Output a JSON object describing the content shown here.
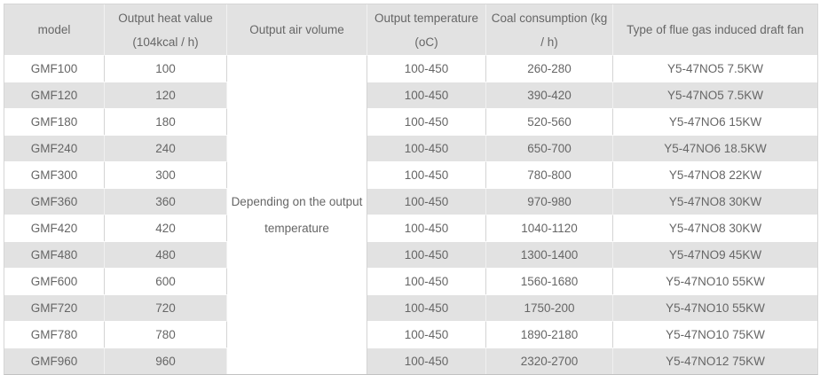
{
  "table": {
    "columns": [
      {
        "key": "model",
        "label": "model"
      },
      {
        "key": "heat",
        "label": "Output heat value\n(104kcal / h)"
      },
      {
        "key": "air",
        "label": "Output air volume"
      },
      {
        "key": "temp",
        "label": "Output temperature\n(oC)"
      },
      {
        "key": "coal",
        "label": "Coal consumption (kg\n/ h)"
      },
      {
        "key": "fan",
        "label": "Type of flue gas induced draft fan"
      }
    ],
    "air_volume_note": "Depending on the output\ntemperature",
    "rows": [
      {
        "model": "GMF100",
        "heat": "100",
        "temp": "100-450",
        "coal": "260-280",
        "fan": "Y5-47NO5 7.5KW"
      },
      {
        "model": "GMF120",
        "heat": "120",
        "temp": "100-450",
        "coal": "390-420",
        "fan": "Y5-47NO5 7.5KW"
      },
      {
        "model": "GMF180",
        "heat": "180",
        "temp": "100-450",
        "coal": "520-560",
        "fan": "Y5-47NO6 15KW"
      },
      {
        "model": "GMF240",
        "heat": "240",
        "temp": "100-450",
        "coal": "650-700",
        "fan": "Y5-47NO6 18.5KW"
      },
      {
        "model": "GMF300",
        "heat": "300",
        "temp": "100-450",
        "coal": "780-800",
        "fan": "Y5-47NO8 22KW"
      },
      {
        "model": "GMF360",
        "heat": "360",
        "temp": "100-450",
        "coal": "970-980",
        "fan": "Y5-47NO8 30KW"
      },
      {
        "model": "GMF420",
        "heat": "420",
        "temp": "100-450",
        "coal": "1040-1120",
        "fan": "Y5-47NO8 30KW"
      },
      {
        "model": "GMF480",
        "heat": "480",
        "temp": "100-450",
        "coal": "1300-1400",
        "fan": "Y5-47NO9 45KW"
      },
      {
        "model": "GMF600",
        "heat": "600",
        "temp": "100-450",
        "coal": "1560-1680",
        "fan": "Y5-47NO10 55KW"
      },
      {
        "model": "GMF720",
        "heat": "720",
        "temp": "100-450",
        "coal": "1750-200",
        "fan": "Y5-47NO10 55KW"
      },
      {
        "model": "GMF780",
        "heat": "780",
        "temp": "100-450",
        "coal": "1890-2180",
        "fan": "Y5-47NO10 75KW"
      },
      {
        "model": "GMF960",
        "heat": "960",
        "temp": "100-450",
        "coal": "2320-2700",
        "fan": "Y5-47NO12 75KW"
      }
    ]
  },
  "colors": {
    "header_bg": "#e2e2e2",
    "stripe_bg": "#e2e2e2",
    "row_bg": "#ffffff",
    "grid_line": "#d4d4d4",
    "outer_border": "#c2c2c2",
    "text": "#666666"
  }
}
